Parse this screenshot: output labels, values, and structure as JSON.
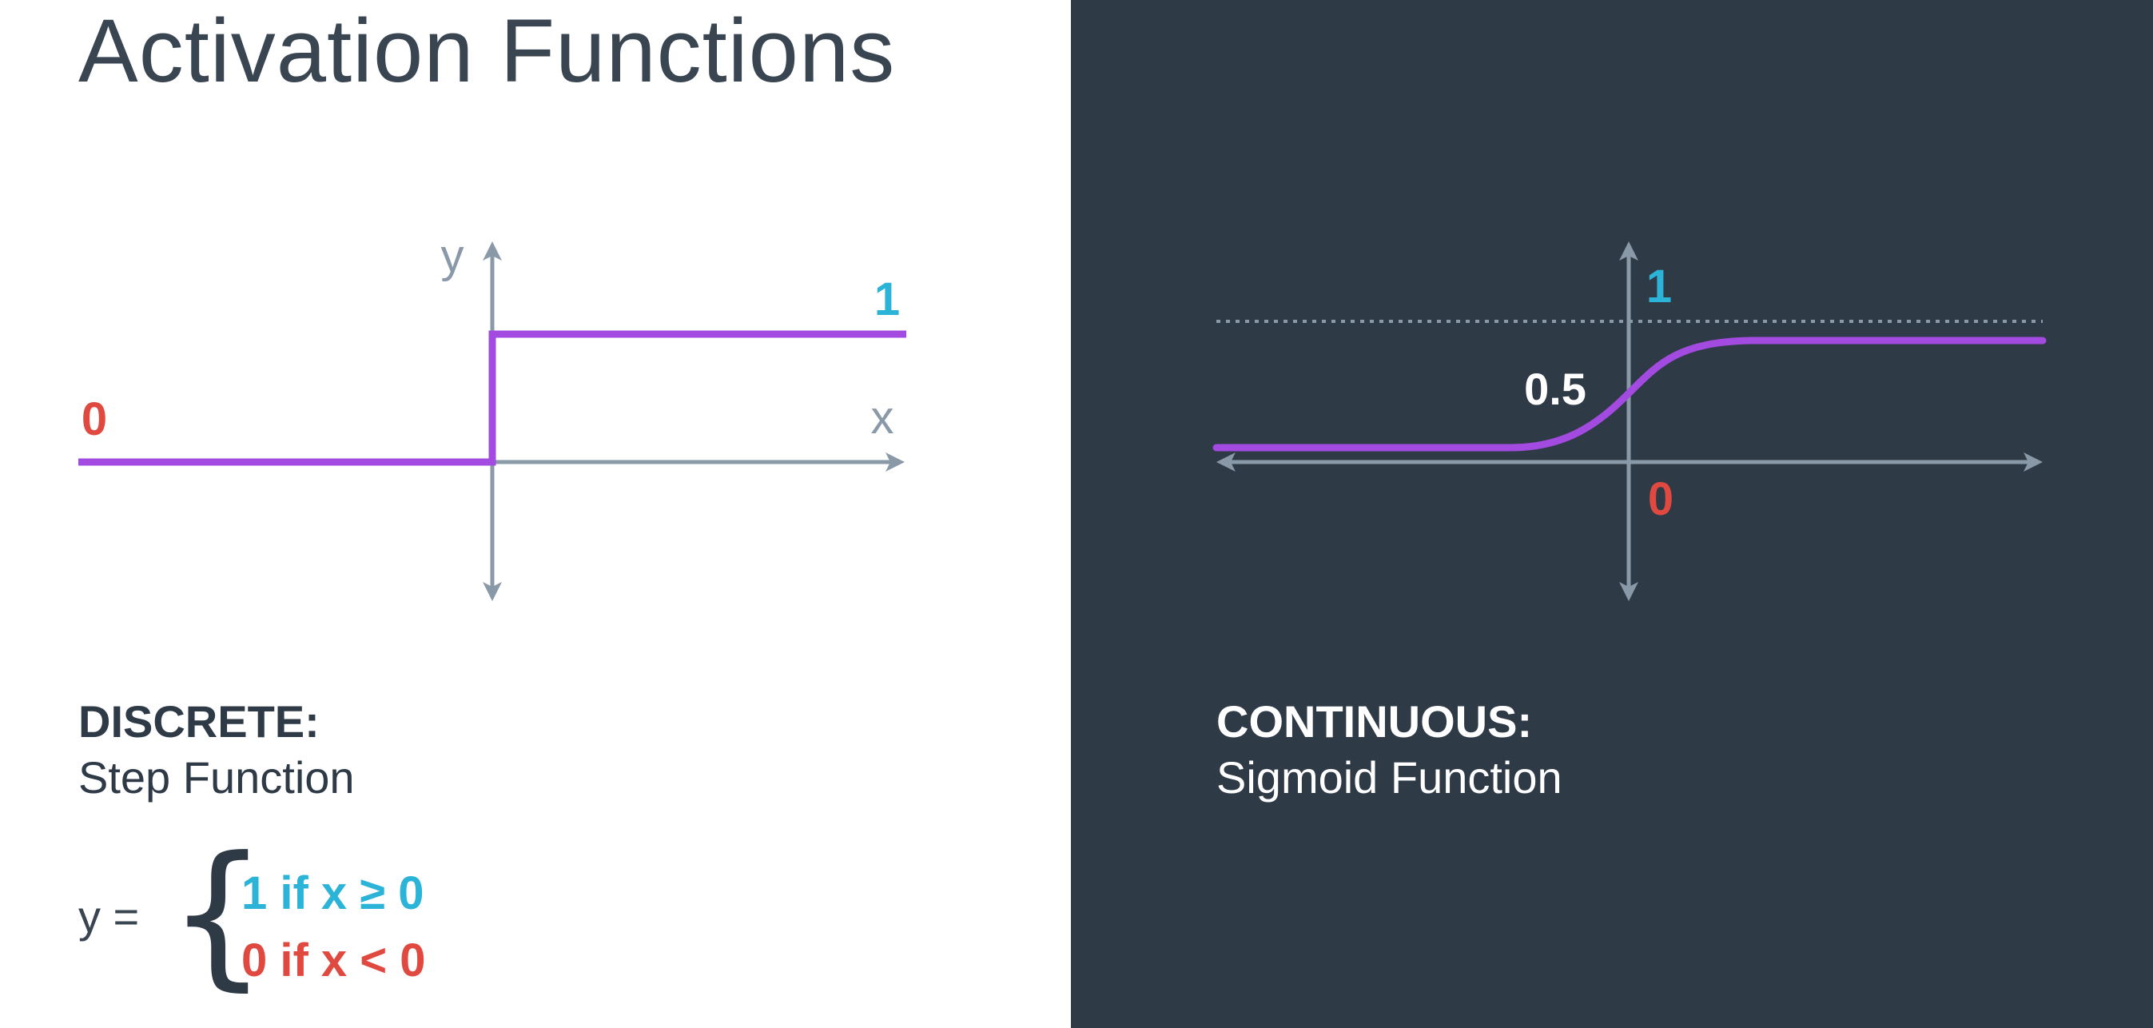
{
  "title": "Activation Functions",
  "step": {
    "y_label": "y",
    "x_label": "x",
    "high_label": "1",
    "low_label": "0",
    "caption_kind": "DISCRETE:",
    "caption_name": "Step Function",
    "formula_lhs": "y =",
    "formula_case_1": "1 if x  ≥ 0",
    "formula_case_2": "0 if x < 0"
  },
  "sigmoid": {
    "one_label": "1",
    "half_label": "0.5",
    "zero_label": "0",
    "caption_kind": "CONTINUOUS:",
    "caption_name": "Sigmoid Function"
  },
  "colors": {
    "curve": "#a34ae0",
    "axis": "#8a99a8",
    "label_blue": "#2bb3d8",
    "label_red": "#e0493f",
    "dark_bg": "#2f3a47"
  }
}
